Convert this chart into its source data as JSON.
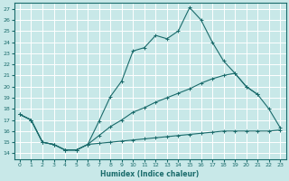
{
  "xlabel": "Humidex (Indice chaleur)",
  "bg_color": "#c8e8e8",
  "grid_color": "#ffffff",
  "line_color": "#1a6b6b",
  "xlim": [
    -0.5,
    23.5
  ],
  "ylim": [
    13.5,
    27.5
  ],
  "xticks": [
    0,
    1,
    2,
    3,
    4,
    5,
    6,
    7,
    8,
    9,
    10,
    11,
    12,
    13,
    14,
    15,
    16,
    17,
    18,
    19,
    20,
    21,
    22,
    23
  ],
  "yticks": [
    14,
    15,
    16,
    17,
    18,
    19,
    20,
    21,
    22,
    23,
    24,
    25,
    26,
    27
  ],
  "line_top_x": [
    0,
    1,
    2,
    3,
    4,
    5,
    6,
    7,
    8,
    9,
    10,
    11,
    12,
    13,
    14,
    15,
    16,
    17,
    18,
    19,
    20,
    21
  ],
  "line_top_y": [
    17.5,
    17.0,
    15.0,
    14.8,
    14.3,
    14.3,
    14.8,
    16.9,
    19.1,
    20.5,
    23.2,
    23.5,
    24.6,
    24.3,
    25.0,
    27.1,
    26.0,
    24.0,
    22.3,
    21.2,
    20.0,
    19.3
  ],
  "line_mid_x": [
    0,
    1,
    2,
    3,
    4,
    5,
    6,
    7,
    8,
    9,
    10,
    11,
    12,
    13,
    14,
    15,
    16,
    17,
    18,
    19,
    20,
    21,
    22,
    23
  ],
  "line_mid_y": [
    17.5,
    17.0,
    15.0,
    14.8,
    14.3,
    14.3,
    14.8,
    15.6,
    16.4,
    17.0,
    17.7,
    18.1,
    18.6,
    19.0,
    19.4,
    19.8,
    20.3,
    20.7,
    21.0,
    21.2,
    20.0,
    19.3,
    18.0,
    16.3
  ],
  "line_bot_x": [
    0,
    1,
    2,
    3,
    4,
    5,
    6,
    7,
    8,
    9,
    10,
    11,
    12,
    13,
    14,
    15,
    16,
    17,
    18,
    19,
    20,
    21,
    22,
    23
  ],
  "line_bot_y": [
    17.5,
    17.0,
    15.0,
    14.8,
    14.3,
    14.3,
    14.8,
    14.9,
    15.0,
    15.1,
    15.2,
    15.3,
    15.4,
    15.5,
    15.6,
    15.7,
    15.8,
    15.9,
    16.0,
    16.0,
    16.0,
    16.0,
    16.0,
    16.1
  ]
}
